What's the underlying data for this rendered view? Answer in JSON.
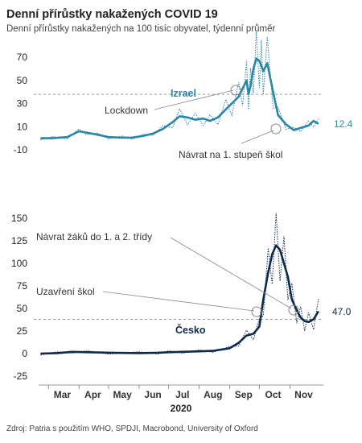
{
  "title": "Denní přírůstky nakažených COVID 19",
  "subtitle": "Denní přírůstky nakažených na 100 tisíc obyvatel, týdenní průměr",
  "source": "Zdroj: Patria s použitím WHO, SPDJI, Macrobond, University of Oxford",
  "colors": {
    "israel": "#2a86a8",
    "czech": "#0d2a4d",
    "reference": "#9a9a9a"
  },
  "chart_data": [
    {
      "type": "line",
      "series": [
        {
          "name": "Izrael",
          "x": [
            "2020-02-22",
            "2020-03-05",
            "2020-03-20",
            "2020-04-01",
            "2020-04-08",
            "2020-04-20",
            "2020-05-01",
            "2020-05-15",
            "2020-05-25",
            "2020-06-05",
            "2020-06-15",
            "2020-06-25",
            "2020-07-05",
            "2020-07-12",
            "2020-07-20",
            "2020-07-28",
            "2020-08-05",
            "2020-08-12",
            "2020-08-20",
            "2020-08-28",
            "2020-09-03",
            "2020-09-10",
            "2020-09-14",
            "2020-09-18",
            "2020-09-20",
            "2020-09-22",
            "2020-09-25",
            "2020-09-28",
            "2020-10-01",
            "2020-10-03",
            "2020-10-05",
            "2020-10-09",
            "2020-10-15",
            "2020-10-20",
            "2020-10-28",
            "2020-11-05",
            "2020-11-12",
            "2020-11-20",
            "2020-11-25",
            "2020-11-30"
          ],
          "values": [
            0,
            0,
            1,
            6,
            5,
            3,
            1,
            0.5,
            0.6,
            2,
            4,
            8,
            14,
            19,
            18,
            16,
            17,
            15,
            18,
            25,
            30,
            36,
            43,
            50,
            38,
            45,
            60,
            69,
            67,
            63,
            58,
            65,
            40,
            20,
            12,
            7,
            9,
            11,
            15,
            12.4
          ]
        }
      ],
      "series_label": "Izrael",
      "end_label": "12.4",
      "y_ticks": [
        "70",
        "50",
        "30",
        "10",
        "-10"
      ],
      "ylim": [
        -10,
        75
      ],
      "reference_line": 38,
      "annotations": [
        "Lockdown",
        "Návrat na 1. stupeň škol"
      ]
    },
    {
      "type": "line",
      "series": [
        {
          "name": "Česko",
          "x": [
            "2020-02-22",
            "2020-03-10",
            "2020-03-25",
            "2020-04-10",
            "2020-05-01",
            "2020-06-01",
            "2020-06-20",
            "2020-07-01",
            "2020-07-15",
            "2020-08-01",
            "2020-08-15",
            "2020-09-01",
            "2020-09-10",
            "2020-09-18",
            "2020-09-25",
            "2020-10-01",
            "2020-10-05",
            "2020-10-10",
            "2020-10-14",
            "2020-10-18",
            "2020-10-22",
            "2020-10-26",
            "2020-10-30",
            "2020-11-03",
            "2020-11-08",
            "2020-11-12",
            "2020-11-16",
            "2020-11-20",
            "2020-11-25",
            "2020-11-30"
          ],
          "values": [
            0,
            0.5,
            2,
            1.5,
            1,
            0.5,
            1,
            1.5,
            2,
            2.5,
            3,
            6,
            12,
            20,
            22,
            30,
            60,
            90,
            110,
            120,
            115,
            100,
            85,
            60,
            48,
            40,
            36,
            35,
            38,
            47
          ]
        }
      ],
      "series_label": "Česko",
      "end_label": "47.0",
      "y_ticks": [
        "150",
        "125",
        "100",
        "75",
        "50",
        "25",
        "0",
        "-25"
      ],
      "ylim": [
        -25,
        150
      ],
      "reference_line": 38,
      "annotations": [
        "Návrat žáků do 1. a 2. třídy",
        "Uzavření škol"
      ]
    }
  ],
  "x_axis": {
    "months": [
      "Mar",
      "Apr",
      "May",
      "Jun",
      "Jul",
      "Aug",
      "Sep",
      "Oct",
      "Nov"
    ],
    "year": "2020"
  }
}
